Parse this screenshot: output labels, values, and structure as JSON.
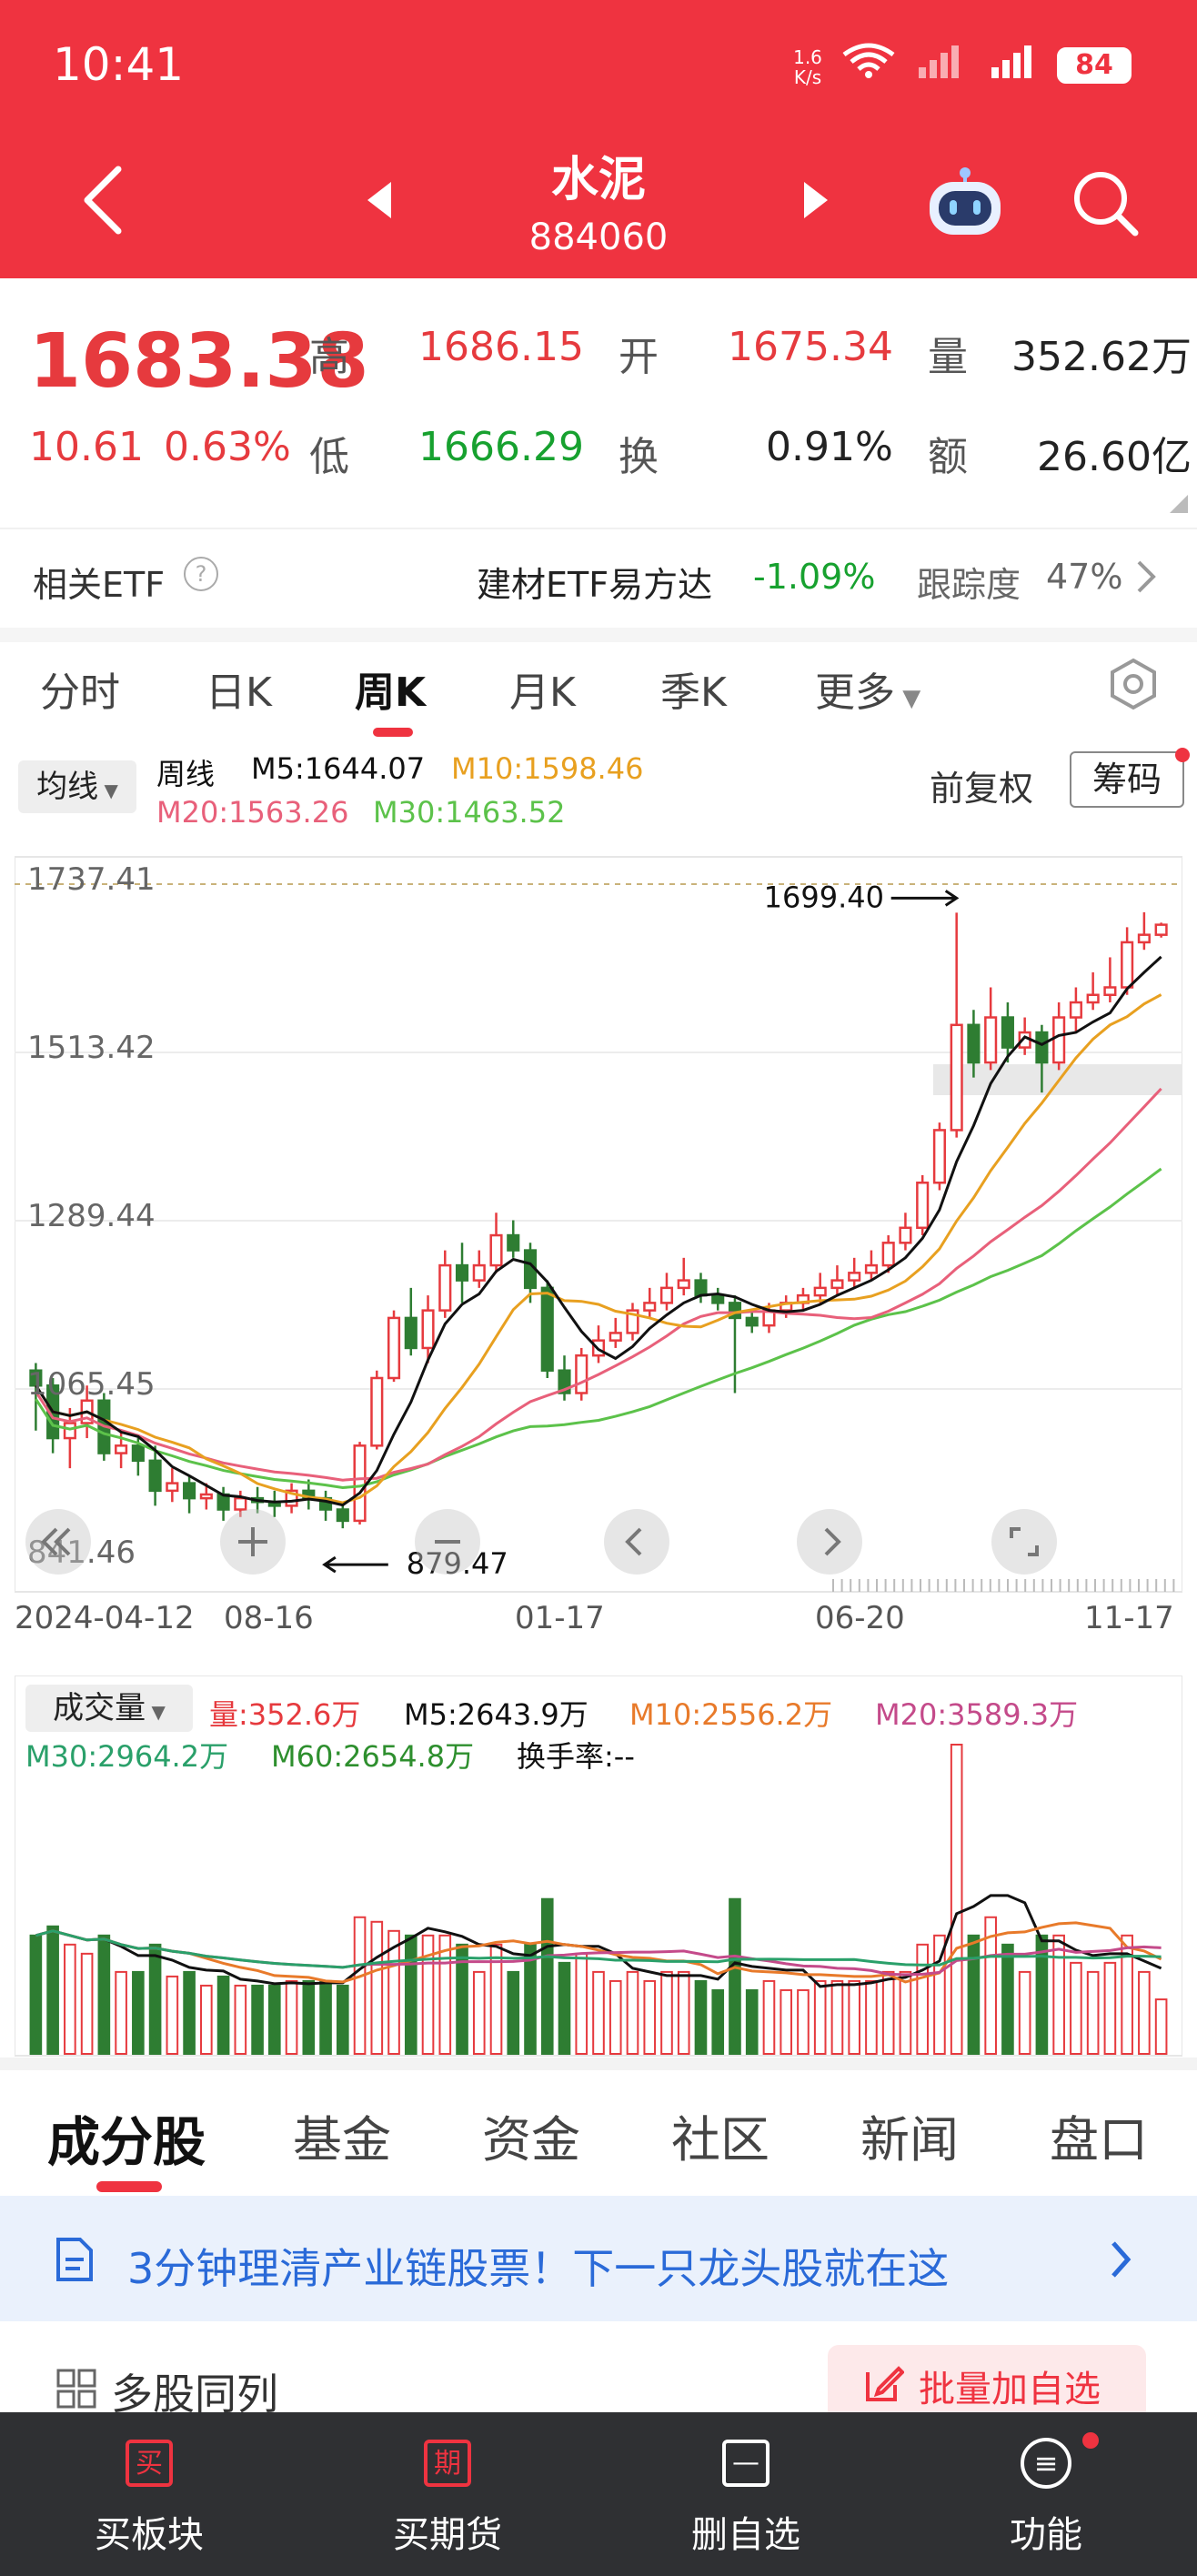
{
  "status_bar": {
    "time": "10:41",
    "net_speed_value": "1.6",
    "net_speed_unit": "K/s",
    "battery": "84"
  },
  "header": {
    "title": "水泥",
    "code": "884060"
  },
  "quote": {
    "price": "1683.38",
    "change": "10.61",
    "change_pct": "0.63%",
    "high_label": "高",
    "high": "1686.15",
    "low_label": "低",
    "low": "1666.29",
    "open_label": "开",
    "open": "1675.34",
    "turnover_label": "换",
    "turnover": "0.91%",
    "volume_label": "量",
    "volume": "352.62万",
    "amount_label": "额",
    "amount": "26.60亿"
  },
  "etf": {
    "label": "相关ETF",
    "name": "建材ETF易方达",
    "change": "-1.09%",
    "tracking_label": "跟踪度",
    "tracking": "47%"
  },
  "tabs": [
    "分时",
    "日K",
    "周K",
    "月K",
    "季K",
    "更多"
  ],
  "active_tab": "周K",
  "indicator": {
    "ma_button": "均线",
    "period": "周线",
    "m5": "M5:1644.07",
    "m10": "M10:1598.46",
    "m20": "M20:1563.26",
    "m30": "M30:1463.52",
    "adjust": "前复权",
    "chips": "筹码"
  },
  "chart_data": {
    "type": "candlestick",
    "y_ticks": [
      "1737.41",
      "1513.42",
      "1289.44",
      "1065.45",
      "841.46"
    ],
    "x_ticks": [
      "2024-04-12",
      "08-16",
      "01-17",
      "06-20",
      "11-17"
    ],
    "annotations": [
      "1699.40",
      "879.47"
    ],
    "ma_colors": {
      "M5": "#111111",
      "M10": "#e8a020",
      "M20": "#e8607a",
      "M30": "#5cc24a"
    },
    "candles": [
      [
        1090,
        1070,
        1100,
        1010
      ],
      [
        1070,
        1000,
        1080,
        980
      ],
      [
        1000,
        1020,
        1040,
        960
      ],
      [
        1020,
        1050,
        1070,
        1000
      ],
      [
        1050,
        980,
        1060,
        970
      ],
      [
        980,
        990,
        1010,
        960
      ],
      [
        990,
        970,
        1000,
        950
      ],
      [
        970,
        930,
        990,
        910
      ],
      [
        930,
        940,
        960,
        915
      ],
      [
        940,
        920,
        950,
        900
      ],
      [
        920,
        925,
        940,
        905
      ],
      [
        925,
        905,
        935,
        890
      ],
      [
        905,
        920,
        930,
        895
      ],
      [
        920,
        915,
        935,
        900
      ],
      [
        915,
        910,
        930,
        895
      ],
      [
        910,
        930,
        940,
        900
      ],
      [
        930,
        920,
        945,
        905
      ],
      [
        920,
        905,
        930,
        890
      ],
      [
        905,
        890,
        915,
        880
      ],
      [
        890,
        990,
        995,
        885
      ],
      [
        990,
        1080,
        1090,
        985
      ],
      [
        1080,
        1160,
        1170,
        1075
      ],
      [
        1160,
        1120,
        1200,
        1110
      ],
      [
        1120,
        1170,
        1190,
        1100
      ],
      [
        1170,
        1230,
        1250,
        1160
      ],
      [
        1230,
        1210,
        1260,
        1180
      ],
      [
        1210,
        1230,
        1250,
        1200
      ],
      [
        1230,
        1270,
        1300,
        1220
      ],
      [
        1270,
        1250,
        1290,
        1240
      ],
      [
        1250,
        1200,
        1260,
        1180
      ],
      [
        1200,
        1090,
        1210,
        1080
      ],
      [
        1090,
        1060,
        1110,
        1050
      ],
      [
        1060,
        1110,
        1120,
        1050
      ],
      [
        1110,
        1130,
        1150,
        1100
      ],
      [
        1130,
        1140,
        1160,
        1120
      ],
      [
        1140,
        1170,
        1180,
        1130
      ],
      [
        1170,
        1180,
        1200,
        1160
      ],
      [
        1180,
        1200,
        1220,
        1170
      ],
      [
        1200,
        1210,
        1240,
        1190
      ],
      [
        1210,
        1190,
        1220,
        1180
      ],
      [
        1190,
        1180,
        1200,
        1170
      ],
      [
        1180,
        1160,
        1190,
        1060
      ],
      [
        1160,
        1150,
        1170,
        1140
      ],
      [
        1150,
        1170,
        1180,
        1140
      ],
      [
        1170,
        1180,
        1190,
        1160
      ],
      [
        1180,
        1190,
        1200,
        1170
      ],
      [
        1190,
        1200,
        1220,
        1180
      ],
      [
        1200,
        1210,
        1230,
        1190
      ],
      [
        1210,
        1220,
        1240,
        1200
      ],
      [
        1220,
        1230,
        1250,
        1210
      ],
      [
        1230,
        1260,
        1270,
        1220
      ],
      [
        1260,
        1280,
        1300,
        1250
      ],
      [
        1280,
        1340,
        1350,
        1270
      ],
      [
        1340,
        1410,
        1420,
        1330
      ],
      [
        1410,
        1550,
        1699.4,
        1400
      ],
      [
        1550,
        1500,
        1570,
        1480
      ],
      [
        1500,
        1560,
        1600,
        1490
      ],
      [
        1560,
        1520,
        1580,
        1500
      ],
      [
        1520,
        1540,
        1560,
        1510
      ],
      [
        1540,
        1500,
        1550,
        1460
      ],
      [
        1500,
        1560,
        1580,
        1490
      ],
      [
        1560,
        1580,
        1600,
        1540
      ],
      [
        1580,
        1590,
        1620,
        1570
      ],
      [
        1590,
        1600,
        1640,
        1580
      ],
      [
        1600,
        1660,
        1680,
        1590
      ],
      [
        1660,
        1670,
        1700,
        1650
      ],
      [
        1670,
        1683.38,
        1686.15,
        1666.29
      ]
    ]
  },
  "volume_panel": {
    "selector": "成交量",
    "vol": "量:352.6万",
    "m5": "M5:2643.9万",
    "m10": "M10:2556.2万",
    "m20": "M20:3589.3万",
    "m30": "M30:2964.2万",
    "m60": "M60:2654.8万",
    "turnover_rate": "换手率:--"
  },
  "bottom_tabs": [
    "成分股",
    "基金",
    "资金",
    "社区",
    "新闻",
    "盘口"
  ],
  "active_bottom_tab": "成分股",
  "banner": {
    "text": "3分钟理清产业链股票！下一只龙头股就在这"
  },
  "compare": {
    "label": "多股同列",
    "batch_add": "批量加自选"
  },
  "nav": [
    {
      "icon_char": "买",
      "label": "买板块"
    },
    {
      "icon_char": "期",
      "label": "买期货"
    },
    {
      "icon_char": "—",
      "label": "删自选"
    },
    {
      "icon_char": "≡",
      "label": "功能"
    }
  ]
}
